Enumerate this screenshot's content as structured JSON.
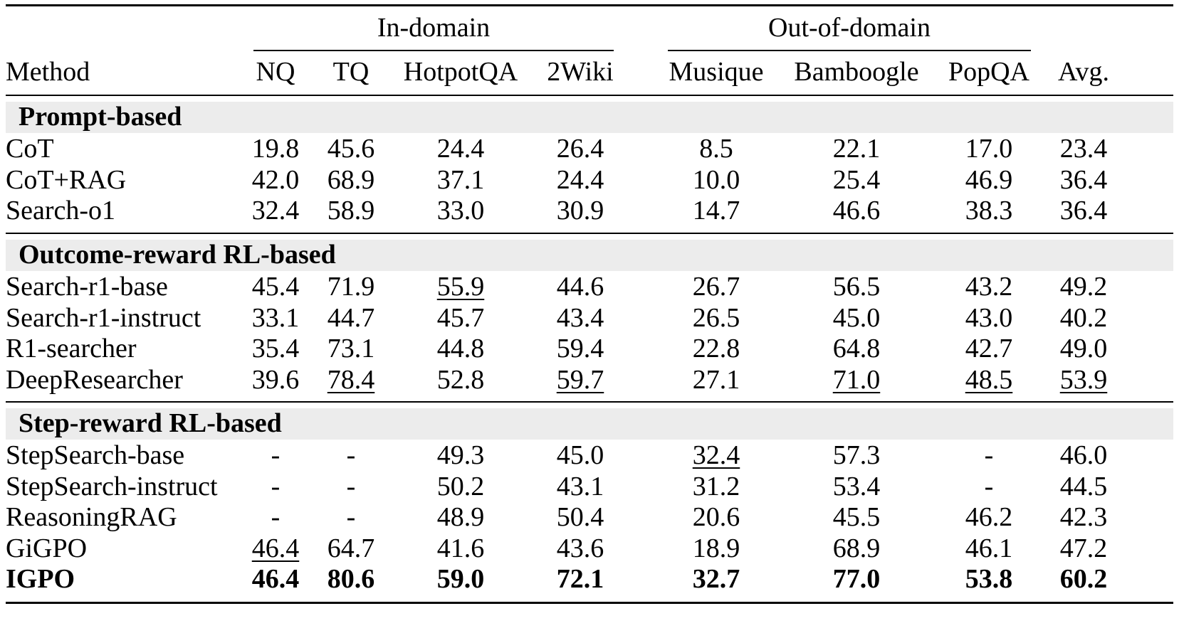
{
  "header": {
    "groups": [
      {
        "label": "In-domain"
      },
      {
        "label": "Out-of-domain"
      }
    ],
    "columns": [
      "Method",
      "NQ",
      "TQ",
      "HotpotQA",
      "2Wiki",
      "Musique",
      "Bamboogle",
      "PopQA",
      "Avg."
    ]
  },
  "sections": [
    {
      "title": "Prompt-based",
      "rows": [
        {
          "method": "CoT",
          "values": [
            "19.8",
            "45.6",
            "24.4",
            "26.4",
            "8.5",
            "22.1",
            "17.0",
            "23.4"
          ],
          "underline": [],
          "bold": false
        },
        {
          "method": "CoT+RAG",
          "values": [
            "42.0",
            "68.9",
            "37.1",
            "24.4",
            "10.0",
            "25.4",
            "46.9",
            "36.4"
          ],
          "underline": [],
          "bold": false
        },
        {
          "method": "Search-o1",
          "values": [
            "32.4",
            "58.9",
            "33.0",
            "30.9",
            "14.7",
            "46.6",
            "38.3",
            "36.4"
          ],
          "underline": [],
          "bold": false
        }
      ]
    },
    {
      "title": "Outcome-reward RL-based",
      "rows": [
        {
          "method": "Search-r1-base",
          "values": [
            "45.4",
            "71.9",
            "55.9",
            "44.6",
            "26.7",
            "56.5",
            "43.2",
            "49.2"
          ],
          "underline": [
            2
          ],
          "bold": false
        },
        {
          "method": "Search-r1-instruct",
          "values": [
            "33.1",
            "44.7",
            "45.7",
            "43.4",
            "26.5",
            "45.0",
            "43.0",
            "40.2"
          ],
          "underline": [],
          "bold": false
        },
        {
          "method": "R1-searcher",
          "values": [
            "35.4",
            "73.1",
            "44.8",
            "59.4",
            "22.8",
            "64.8",
            "42.7",
            "49.0"
          ],
          "underline": [],
          "bold": false
        },
        {
          "method": "DeepResearcher",
          "values": [
            "39.6",
            "78.4",
            "52.8",
            "59.7",
            "27.1",
            "71.0",
            "48.5",
            "53.9"
          ],
          "underline": [
            1,
            3,
            5,
            6,
            7
          ],
          "bold": false
        }
      ]
    },
    {
      "title": "Step-reward RL-based",
      "rows": [
        {
          "method": "StepSearch-base",
          "values": [
            "-",
            "-",
            "49.3",
            "45.0",
            "32.4",
            "57.3",
            "-",
            "46.0"
          ],
          "underline": [
            4
          ],
          "bold": false
        },
        {
          "method": "StepSearch-instruct",
          "values": [
            "-",
            "-",
            "50.2",
            "43.1",
            "31.2",
            "53.4",
            "-",
            "44.5"
          ],
          "underline": [],
          "bold": false
        },
        {
          "method": "ReasoningRAG",
          "values": [
            "-",
            "-",
            "48.9",
            "50.4",
            "20.6",
            "45.5",
            "46.2",
            "42.3"
          ],
          "underline": [],
          "bold": false
        },
        {
          "method": "GiGPO",
          "values": [
            "46.4",
            "64.7",
            "41.6",
            "43.6",
            "18.9",
            "68.9",
            "46.1",
            "47.2"
          ],
          "underline": [
            0
          ],
          "bold": false
        },
        {
          "method": "IGPO",
          "values": [
            "46.4",
            "80.6",
            "59.0",
            "72.1",
            "32.7",
            "77.0",
            "53.8",
            "60.2"
          ],
          "underline": [],
          "bold": true
        }
      ]
    }
  ]
}
